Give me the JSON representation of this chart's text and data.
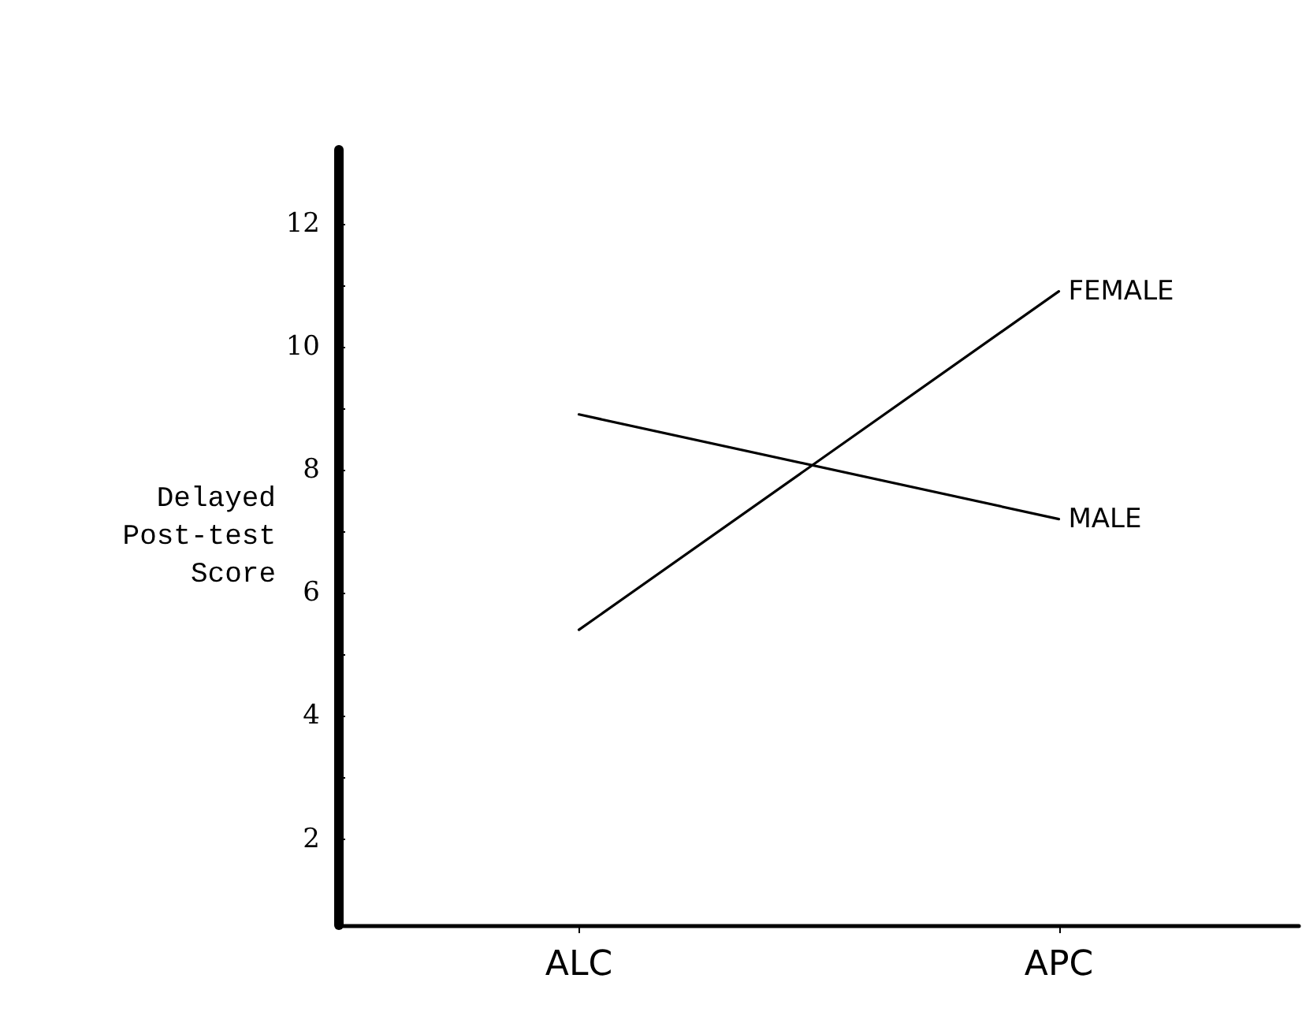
{
  "chart_data": {
    "type": "line",
    "categories": [
      "ALC",
      "APC"
    ],
    "series": [
      {
        "name": "FEMALE",
        "color": "#000000",
        "values": [
          5.4,
          10.9
        ]
      },
      {
        "name": "MALE",
        "color": "#000000",
        "values": [
          8.9,
          7.2
        ]
      }
    ],
    "ylabel": "Delayed\nPost-test\nScore",
    "ylim": [
      0.6,
      13.2
    ],
    "yticks": [
      2,
      {
        "value": 3,
        "label": null
      },
      4,
      {
        "value": 5,
        "label": null
      },
      6,
      {
        "value": 7,
        "label": null
      },
      8,
      {
        "value": 9,
        "label": null
      },
      10,
      {
        "value": 11,
        "label": null
      },
      12
    ],
    "grid": false,
    "legend": false,
    "marker": "none",
    "line_style": "solid"
  }
}
